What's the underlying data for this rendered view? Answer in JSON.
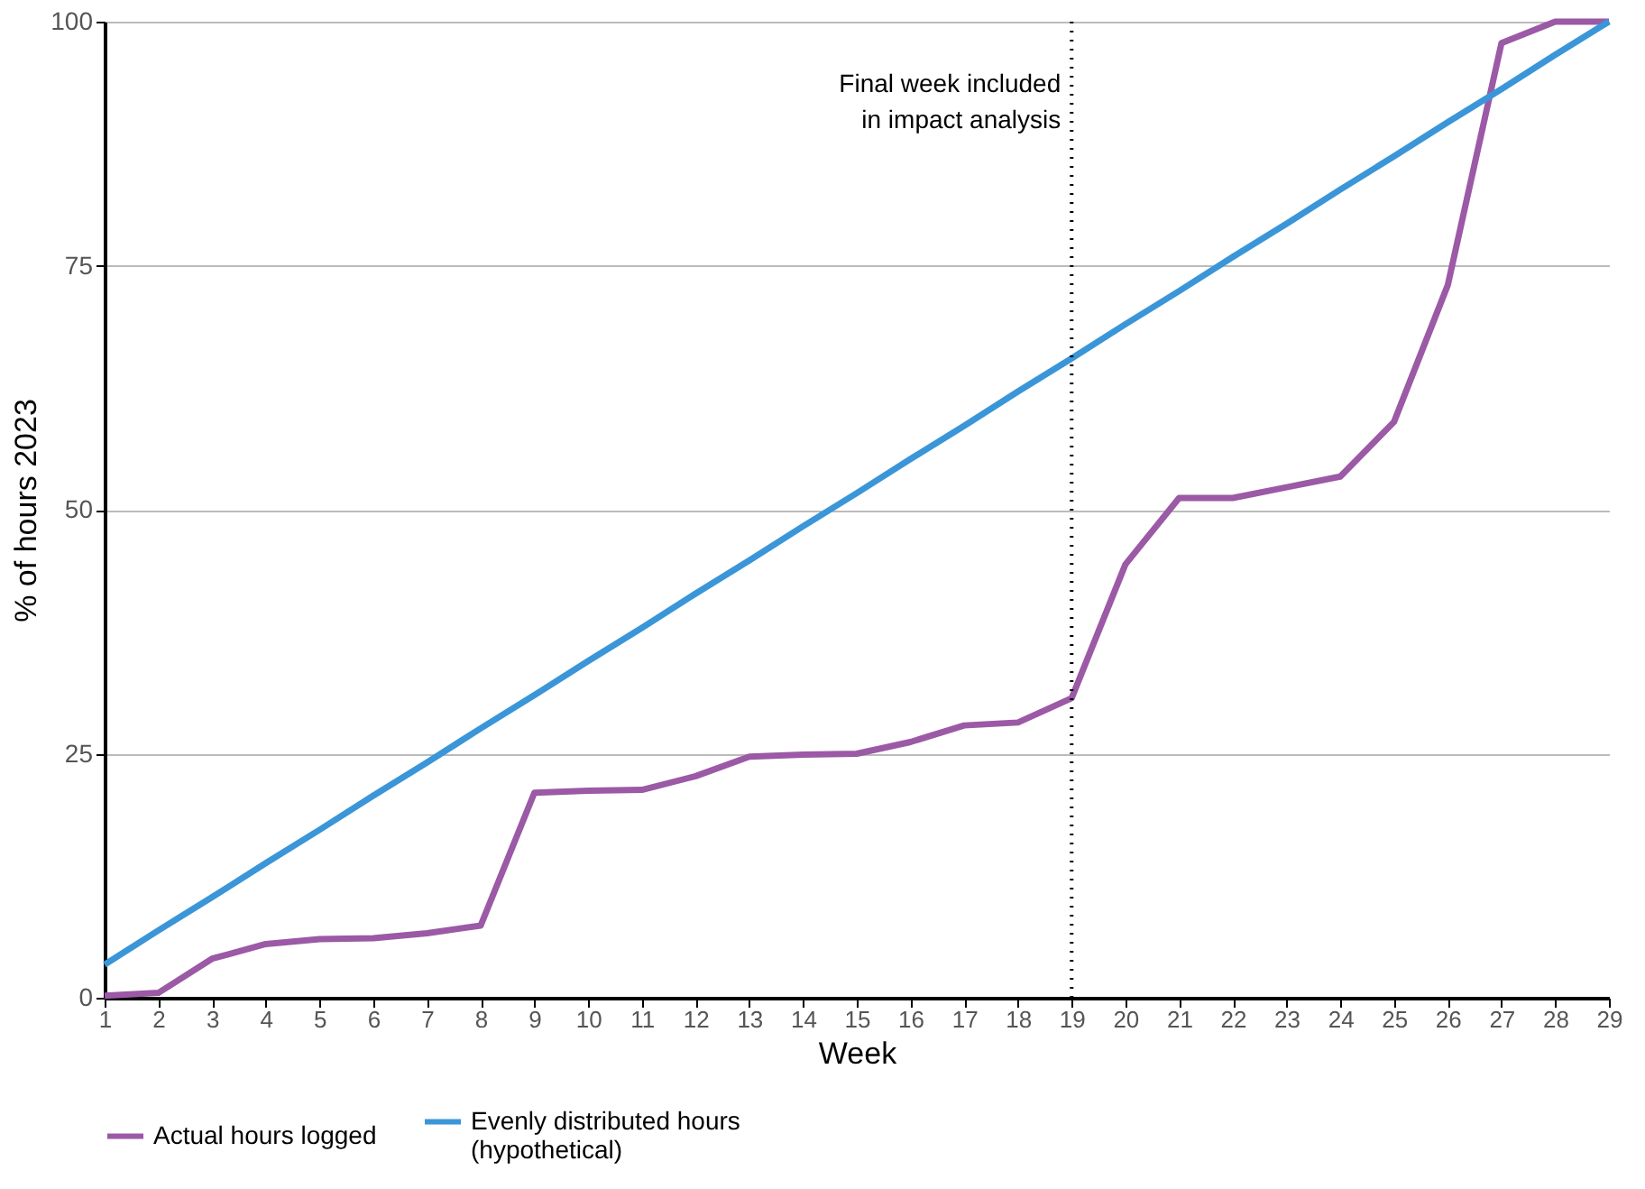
{
  "chart_data": {
    "type": "line",
    "xlabel": "Week",
    "ylabel": "% of hours 2023",
    "x": [
      1,
      2,
      3,
      4,
      5,
      6,
      7,
      8,
      9,
      10,
      11,
      12,
      13,
      14,
      15,
      16,
      17,
      18,
      19,
      20,
      21,
      22,
      23,
      24,
      25,
      26,
      27,
      28,
      29
    ],
    "series": [
      {
        "name": "Actual hours logged",
        "color": "#9b59a6",
        "values": [
          0.2,
          0.5,
          4,
          5.5,
          6,
          6.1,
          6.6,
          7.4,
          21,
          21.2,
          21.3,
          22.7,
          24.7,
          24.9,
          25,
          26.2,
          27.9,
          28.2,
          30.7,
          44.4,
          51.2,
          51.2,
          52.3,
          53.4,
          59,
          73,
          97.8,
          100,
          100
        ]
      },
      {
        "name": "Evenly distributed hours\n(hypothetical)",
        "color": "#3a96d8",
        "values": [
          3.4,
          6.9,
          10.3,
          13.8,
          17.2,
          20.7,
          24.1,
          27.6,
          31.0,
          34.5,
          37.9,
          41.4,
          44.8,
          48.3,
          51.7,
          55.2,
          58.6,
          62.1,
          65.5,
          69.0,
          72.4,
          75.9,
          79.3,
          82.8,
          86.2,
          89.7,
          93.1,
          96.6,
          100
        ]
      }
    ],
    "xlim": [
      1,
      29
    ],
    "xticks": [
      1,
      2,
      3,
      4,
      5,
      6,
      7,
      8,
      9,
      10,
      11,
      12,
      13,
      14,
      15,
      16,
      17,
      18,
      19,
      20,
      21,
      22,
      23,
      24,
      25,
      26,
      27,
      28,
      29
    ],
    "ylim": [
      0,
      100
    ],
    "yticks": [
      0,
      25,
      50,
      75,
      100
    ],
    "ref_lines": [
      {
        "axis": "x",
        "value": 19,
        "label": "Final week included\nin impact analysis",
        "color": "#000000",
        "line_style": "dotted"
      }
    ],
    "grid": "y",
    "legend": "bottom",
    "marker": "none",
    "line_style": "solid"
  }
}
